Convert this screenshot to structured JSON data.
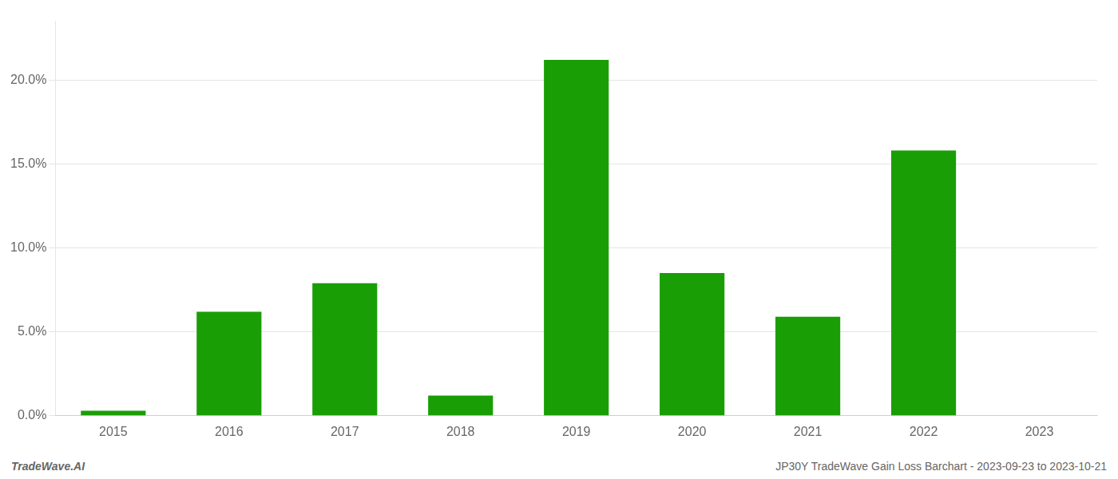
{
  "chart_data": {
    "type": "bar",
    "categories": [
      "2015",
      "2016",
      "2017",
      "2018",
      "2019",
      "2020",
      "2021",
      "2022",
      "2023"
    ],
    "values": [
      0.003,
      0.062,
      0.079,
      0.012,
      0.212,
      0.085,
      0.059,
      0.158,
      0.0
    ],
    "color": "#1a9e06",
    "ylim": [
      0,
      0.235
    ],
    "yticks": [
      {
        "value": 0.0,
        "label": "0.0%"
      },
      {
        "value": 0.05,
        "label": "5.0%"
      },
      {
        "value": 0.1,
        "label": "10.0%"
      },
      {
        "value": 0.15,
        "label": "15.0%"
      },
      {
        "value": 0.2,
        "label": "20.0%"
      }
    ],
    "grid": true,
    "annotations": [
      "TradeWave.AI",
      "JP30Y TradeWave Gain Loss Barchart - 2023-09-23 to 2023-10-21"
    ]
  }
}
